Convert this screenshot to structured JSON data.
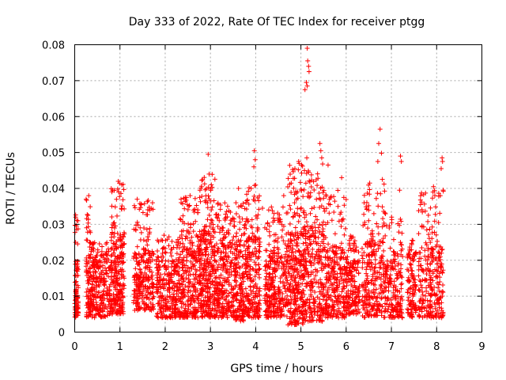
{
  "chart_data": {
    "type": "scatter",
    "title": "Day 333 of 2022, Rate Of TEC Index for receiver ptgg",
    "xlabel": "GPS time / hours",
    "ylabel": "ROTI / TECUs",
    "xlim": [
      0,
      9
    ],
    "ylim": [
      0,
      0.08
    ],
    "xticks": [
      "0",
      "1",
      "2",
      "3",
      "4",
      "5",
      "6",
      "7",
      "8",
      "9"
    ],
    "yticks": [
      "0",
      "0.01",
      "0.02",
      "0.03",
      "0.04",
      "0.05",
      "0.06",
      "0.07",
      "0.08"
    ],
    "grid": true,
    "marker": "+",
    "series_color": "#ff0000",
    "density": [
      {
        "x0": 0.0,
        "x1": 0.08,
        "n": 90,
        "lo": 0.004,
        "hi": 0.02,
        "peak": 0.033
      },
      {
        "x0": 0.25,
        "x1": 0.35,
        "n": 90,
        "lo": 0.004,
        "hi": 0.022,
        "peak": 0.038
      },
      {
        "x0": 0.35,
        "x1": 0.8,
        "n": 260,
        "lo": 0.004,
        "hi": 0.02,
        "peak": 0.025
      },
      {
        "x0": 0.8,
        "x1": 1.1,
        "n": 240,
        "lo": 0.005,
        "hi": 0.028,
        "peak": 0.042
      },
      {
        "x0": 1.3,
        "x1": 1.75,
        "n": 260,
        "lo": 0.006,
        "hi": 0.022,
        "peak": 0.037
      },
      {
        "x0": 1.8,
        "x1": 2.3,
        "n": 270,
        "lo": 0.004,
        "hi": 0.02,
        "peak": 0.027
      },
      {
        "x0": 2.3,
        "x1": 2.75,
        "n": 290,
        "lo": 0.004,
        "hi": 0.025,
        "peak": 0.038
      },
      {
        "x0": 2.75,
        "x1": 3.1,
        "n": 300,
        "lo": 0.004,
        "hi": 0.03,
        "peak": 0.044
      },
      {
        "x0": 3.1,
        "x1": 3.55,
        "n": 290,
        "lo": 0.004,
        "hi": 0.025,
        "peak": 0.036
      },
      {
        "x0": 3.55,
        "x1": 3.75,
        "n": 140,
        "lo": 0.003,
        "hi": 0.025,
        "peak": 0.037
      },
      {
        "x0": 3.75,
        "x1": 4.1,
        "n": 230,
        "lo": 0.004,
        "hi": 0.027,
        "peak": 0.041
      },
      {
        "x0": 4.2,
        "x1": 4.7,
        "n": 300,
        "lo": 0.004,
        "hi": 0.023,
        "peak": 0.035
      },
      {
        "x0": 4.7,
        "x1": 5.05,
        "n": 280,
        "lo": 0.002,
        "hi": 0.028,
        "peak": 0.047
      },
      {
        "x0": 5.05,
        "x1": 5.5,
        "n": 300,
        "lo": 0.003,
        "hi": 0.03,
        "peak": 0.045
      },
      {
        "x0": 5.5,
        "x1": 6.0,
        "n": 280,
        "lo": 0.004,
        "hi": 0.024,
        "peak": 0.04
      },
      {
        "x0": 6.0,
        "x1": 6.3,
        "n": 160,
        "lo": 0.005,
        "hi": 0.02,
        "peak": 0.027
      },
      {
        "x0": 6.35,
        "x1": 6.85,
        "n": 260,
        "lo": 0.004,
        "hi": 0.026,
        "peak": 0.042
      },
      {
        "x0": 6.85,
        "x1": 7.25,
        "n": 200,
        "lo": 0.004,
        "hi": 0.022,
        "peak": 0.034
      },
      {
        "x0": 7.35,
        "x1": 7.55,
        "n": 110,
        "lo": 0.004,
        "hi": 0.02,
        "peak": 0.026
      },
      {
        "x0": 7.6,
        "x1": 8.15,
        "n": 270,
        "lo": 0.004,
        "hi": 0.024,
        "peak": 0.04
      }
    ],
    "outliers": [
      {
        "x": 0.02,
        "y": 0.032
      },
      {
        "x": 0.02,
        "y": 0.025
      },
      {
        "x": 0.31,
        "y": 0.038
      },
      {
        "x": 0.97,
        "y": 0.039
      },
      {
        "x": 1.04,
        "y": 0.041
      },
      {
        "x": 1.38,
        "y": 0.037
      },
      {
        "x": 1.72,
        "y": 0.036
      },
      {
        "x": 2.35,
        "y": 0.037
      },
      {
        "x": 2.55,
        "y": 0.038
      },
      {
        "x": 2.95,
        "y": 0.0495
      },
      {
        "x": 2.97,
        "y": 0.044
      },
      {
        "x": 3.02,
        "y": 0.041
      },
      {
        "x": 3.62,
        "y": 0.04
      },
      {
        "x": 3.9,
        "y": 0.04
      },
      {
        "x": 3.97,
        "y": 0.0505
      },
      {
        "x": 3.99,
        "y": 0.048
      },
      {
        "x": 3.96,
        "y": 0.046
      },
      {
        "x": 4.15,
        "y": 0.0345
      },
      {
        "x": 4.62,
        "y": 0.038
      },
      {
        "x": 4.95,
        "y": 0.0475
      },
      {
        "x": 5.13,
        "y": 0.0485
      },
      {
        "x": 5.14,
        "y": 0.079
      },
      {
        "x": 5.15,
        "y": 0.0755
      },
      {
        "x": 5.17,
        "y": 0.074
      },
      {
        "x": 5.18,
        "y": 0.0725
      },
      {
        "x": 5.12,
        "y": 0.0695
      },
      {
        "x": 5.14,
        "y": 0.0685
      },
      {
        "x": 5.09,
        "y": 0.0675
      },
      {
        "x": 5.42,
        "y": 0.0525
      },
      {
        "x": 5.44,
        "y": 0.0505
      },
      {
        "x": 5.46,
        "y": 0.0485
      },
      {
        "x": 5.48,
        "y": 0.0468
      },
      {
        "x": 5.6,
        "y": 0.0465
      },
      {
        "x": 5.9,
        "y": 0.043
      },
      {
        "x": 6.52,
        "y": 0.0415
      },
      {
        "x": 6.75,
        "y": 0.0565
      },
      {
        "x": 6.72,
        "y": 0.0525
      },
      {
        "x": 6.78,
        "y": 0.0498
      },
      {
        "x": 6.7,
        "y": 0.0475
      },
      {
        "x": 6.8,
        "y": 0.0425
      },
      {
        "x": 7.2,
        "y": 0.049
      },
      {
        "x": 7.22,
        "y": 0.0475
      },
      {
        "x": 7.18,
        "y": 0.0395
      },
      {
        "x": 7.93,
        "y": 0.0405
      },
      {
        "x": 8.12,
        "y": 0.0485
      },
      {
        "x": 8.13,
        "y": 0.0475
      },
      {
        "x": 8.1,
        "y": 0.0455
      },
      {
        "x": 8.08,
        "y": 0.038
      }
    ]
  }
}
